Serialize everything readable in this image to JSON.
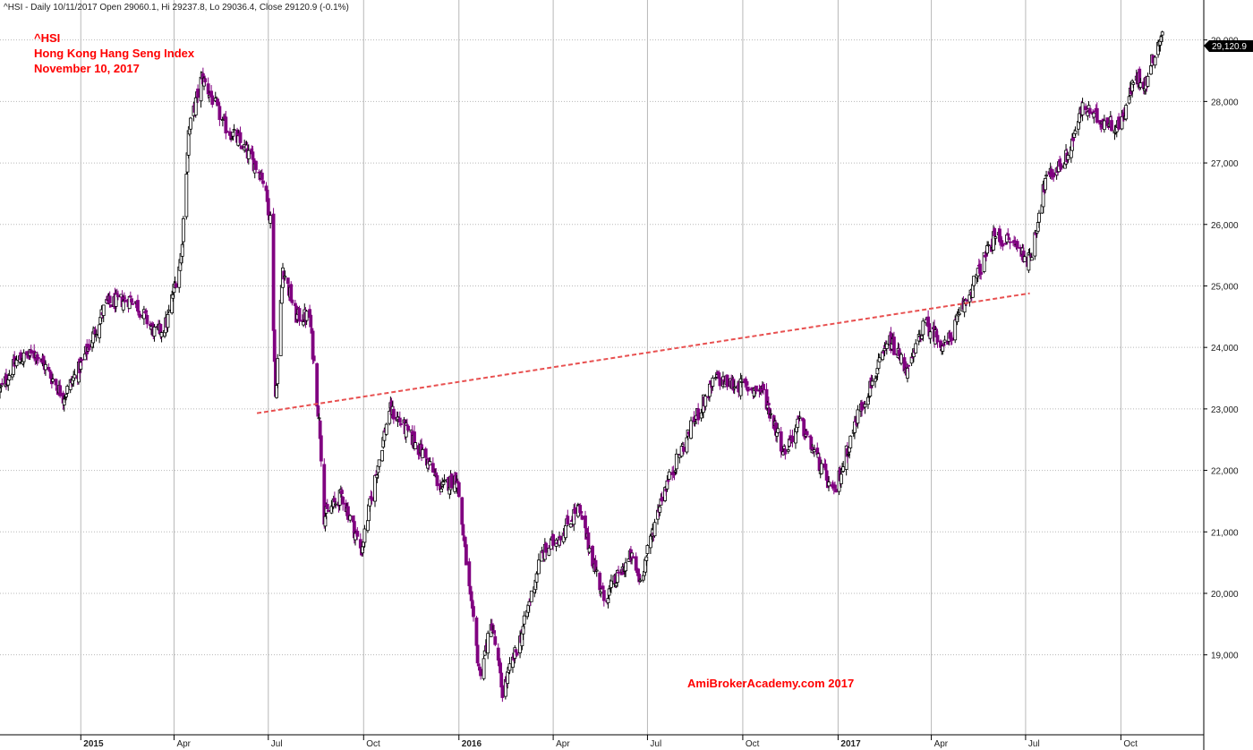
{
  "header": {
    "info": "^HSI - Daily 10/11/2017 Open 29060.1, Hi 29237.8, Lo 29036.4, Close 29120.9 (-0.1%)"
  },
  "overlay": {
    "line1": "^HSI",
    "line2": "Hong Kong Hang Seng Index",
    "line3": "November 10, 2017",
    "watermark": "AmiBrokerAcademy.com  2017",
    "text_color": "#ff0000"
  },
  "price_tag": "29,120.9",
  "colors": {
    "up_candle": "#000000",
    "down_candle": "#800080",
    "trendline": "#e85050",
    "grid": "#b8b8b8"
  },
  "chart_data": {
    "type": "candlestick",
    "title": "^HSI",
    "ylim": [
      17700,
      29650
    ],
    "y_ticks": [
      19000,
      20000,
      21000,
      22000,
      23000,
      24000,
      25000,
      26000,
      27000,
      28000,
      29000
    ],
    "y_tick_labels": [
      "19,000",
      "20,000",
      "21,000",
      "22,000",
      "23,000",
      "24,000",
      "25,000",
      "26,000",
      "27,000",
      "28,000",
      "29,000"
    ],
    "x_labels": [
      {
        "label": "2015",
        "date": "2015-01",
        "bold": true
      },
      {
        "label": "Apr",
        "date": "2015-04"
      },
      {
        "label": "Jul",
        "date": "2015-07"
      },
      {
        "label": "Oct",
        "date": "2015-10"
      },
      {
        "label": "2016",
        "date": "2016-01",
        "bold": true
      },
      {
        "label": "Apr",
        "date": "2016-04"
      },
      {
        "label": "Jul",
        "date": "2016-07"
      },
      {
        "label": "Oct",
        "date": "2016-10"
      },
      {
        "label": "2017",
        "date": "2017-01",
        "bold": true
      },
      {
        "label": "Apr",
        "date": "2017-04"
      },
      {
        "label": "Jul",
        "date": "2017-07"
      },
      {
        "label": "Oct",
        "date": "2017-10"
      }
    ],
    "x_range": [
      "2014-10-15",
      "2017-12-20"
    ],
    "close_path": [
      [
        "2014-10-15",
        23300
      ],
      [
        "2014-11-01",
        23800
      ],
      [
        "2014-11-20",
        23900
      ],
      [
        "2014-12-15",
        23200
      ],
      [
        "2015-01-01",
        23700
      ],
      [
        "2015-01-25",
        24700
      ],
      [
        "2015-02-20",
        24800
      ],
      [
        "2015-03-15",
        24200
      ],
      [
        "2015-03-25",
        24400
      ],
      [
        "2015-04-08",
        25500
      ],
      [
        "2015-04-15",
        27500
      ],
      [
        "2015-04-28",
        28400
      ],
      [
        "2015-05-20",
        27600
      ],
      [
        "2015-06-05",
        27300
      ],
      [
        "2015-06-25",
        26800
      ],
      [
        "2015-07-03",
        26100
      ],
      [
        "2015-07-08",
        23200
      ],
      [
        "2015-07-15",
        25300
      ],
      [
        "2015-07-28",
        24500
      ],
      [
        "2015-08-10",
        24500
      ],
      [
        "2015-08-20",
        22600
      ],
      [
        "2015-08-24",
        21250
      ],
      [
        "2015-09-10",
        21600
      ],
      [
        "2015-09-29",
        20700
      ],
      [
        "2015-10-10",
        21700
      ],
      [
        "2015-10-26",
        23000
      ],
      [
        "2015-11-05",
        22800
      ],
      [
        "2015-11-30",
        22200
      ],
      [
        "2015-12-15",
        21700
      ],
      [
        "2015-12-30",
        21900
      ],
      [
        "2016-01-12",
        19900
      ],
      [
        "2016-01-21",
        18700
      ],
      [
        "2016-02-02",
        19500
      ],
      [
        "2016-02-12",
        18400
      ],
      [
        "2016-03-01",
        19300
      ],
      [
        "2016-03-20",
        20600
      ],
      [
        "2016-04-10",
        21000
      ],
      [
        "2016-04-25",
        21400
      ],
      [
        "2016-05-20",
        19900
      ],
      [
        "2016-06-15",
        20600
      ],
      [
        "2016-06-24",
        20200
      ],
      [
        "2016-07-15",
        21600
      ],
      [
        "2016-08-15",
        22800
      ],
      [
        "2016-09-05",
        23500
      ],
      [
        "2016-09-20",
        23400
      ],
      [
        "2016-10-20",
        23300
      ],
      [
        "2016-11-10",
        22300
      ],
      [
        "2016-11-25",
        22800
      ],
      [
        "2016-12-28",
        21600
      ],
      [
        "2017-01-20",
        22900
      ],
      [
        "2017-02-20",
        24100
      ],
      [
        "2017-03-10",
        23600
      ],
      [
        "2017-03-25",
        24400
      ],
      [
        "2017-04-15",
        24000
      ],
      [
        "2017-05-08",
        24900
      ],
      [
        "2017-06-01",
        25800
      ],
      [
        "2017-06-20",
        25700
      ],
      [
        "2017-07-05",
        25400
      ],
      [
        "2017-07-20",
        26700
      ],
      [
        "2017-08-10",
        27100
      ],
      [
        "2017-08-25",
        27900
      ],
      [
        "2017-09-10",
        27700
      ],
      [
        "2017-09-30",
        27600
      ],
      [
        "2017-10-15",
        28400
      ],
      [
        "2017-10-25",
        28300
      ],
      [
        "2017-11-01",
        28700
      ],
      [
        "2017-11-10",
        29120.9
      ]
    ],
    "trendline": {
      "start": [
        "2015-06-20",
        22930
      ],
      "end": [
        "2017-07-05",
        24880
      ]
    }
  }
}
